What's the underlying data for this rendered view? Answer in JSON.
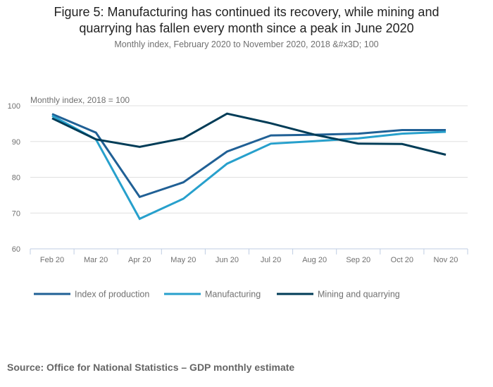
{
  "chart_data": {
    "type": "line",
    "title": "Figure 5: Manufacturing has continued its recovery, while mining and quarrying has fallen every month since a peak in June 2020",
    "title_line1": "Figure 5: Manufacturing has continued its recovery, while mining and",
    "title_line2": "quarrying has fallen every month since a peak in June 2020",
    "subtitle": "Monthly index, February 2020 to November 2020, 2018 &#x3D; 100",
    "ylabel": "Monthly index, 2018 = 100",
    "xlabel": "",
    "ylim": [
      60,
      100
    ],
    "yticks": [
      60,
      70,
      80,
      90,
      100
    ],
    "grid": true,
    "legend_position": "bottom-left",
    "categories": [
      "Feb 20",
      "Mar 20",
      "Apr 20",
      "May 20",
      "Jun 20",
      "Jul 20",
      "Aug 20",
      "Sep 20",
      "Oct 20",
      "Nov 20"
    ],
    "series": [
      {
        "name": "Index of production",
        "color": "#206095",
        "values": [
          97.7,
          92.5,
          74.5,
          78.6,
          87.2,
          91.7,
          91.9,
          92.2,
          93.2,
          93.2
        ]
      },
      {
        "name": "Manufacturing",
        "color": "#27a0cc",
        "values": [
          97.2,
          90.6,
          68.4,
          74.0,
          83.8,
          89.4,
          90.1,
          90.9,
          92.2,
          92.7
        ]
      },
      {
        "name": "Mining and quarrying",
        "color": "#003c57",
        "values": [
          96.5,
          90.6,
          88.5,
          90.9,
          97.8,
          95.1,
          91.9,
          89.4,
          89.3,
          86.3
        ]
      }
    ]
  },
  "source": "Source: Office for National Statistics – GDP monthly estimate"
}
